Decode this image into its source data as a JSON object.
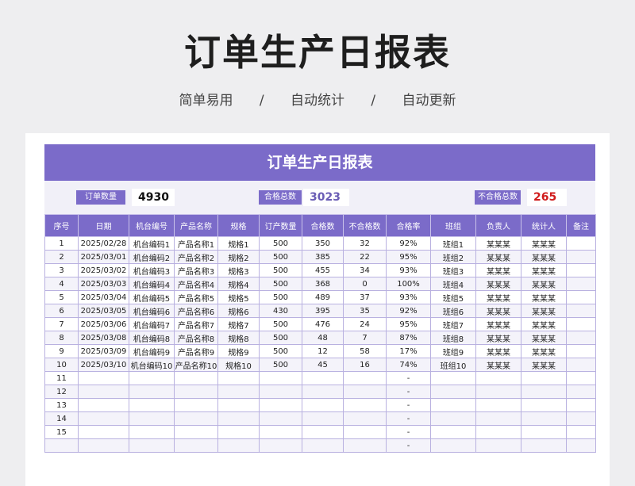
{
  "page": {
    "title": "订单生产日报表",
    "subtitle": [
      "简单易用",
      "自动统计",
      "自动更新"
    ],
    "subtitle_sep": "/"
  },
  "sheet": {
    "banner": "订单生产日报表",
    "summary": {
      "order_qty_label": "订单数量",
      "order_qty": "4930",
      "pass_total_label": "合格总数",
      "pass_total": "3023",
      "fail_total_label": "不合格总数",
      "fail_total": "265"
    },
    "colors": {
      "accent": "#7b6bc9",
      "pass_value": "#6a5db5",
      "fail_value": "#d01c1c"
    },
    "headers": [
      "序号",
      "日期",
      "机台编号",
      "产品名称",
      "规格",
      "订产数量",
      "合格数",
      "不合格数",
      "合格率",
      "班组",
      "负责人",
      "统计人",
      "备注"
    ],
    "rows": [
      [
        "1",
        "2025/02/28",
        "机台编码1",
        "产品名称1",
        "规格1",
        "500",
        "350",
        "32",
        "92%",
        "班组1",
        "某某某",
        "某某某",
        ""
      ],
      [
        "2",
        "2025/03/01",
        "机台编码2",
        "产品名称2",
        "规格2",
        "500",
        "385",
        "22",
        "95%",
        "班组2",
        "某某某",
        "某某某",
        ""
      ],
      [
        "3",
        "2025/03/02",
        "机台编码3",
        "产品名称3",
        "规格3",
        "500",
        "455",
        "34",
        "93%",
        "班组3",
        "某某某",
        "某某某",
        ""
      ],
      [
        "4",
        "2025/03/03",
        "机台编码4",
        "产品名称4",
        "规格4",
        "500",
        "368",
        "0",
        "100%",
        "班组4",
        "某某某",
        "某某某",
        ""
      ],
      [
        "5",
        "2025/03/04",
        "机台编码5",
        "产品名称5",
        "规格5",
        "500",
        "489",
        "37",
        "93%",
        "班组5",
        "某某某",
        "某某某",
        ""
      ],
      [
        "6",
        "2025/03/05",
        "机台编码6",
        "产品名称6",
        "规格6",
        "430",
        "395",
        "35",
        "92%",
        "班组6",
        "某某某",
        "某某某",
        ""
      ],
      [
        "7",
        "2025/03/06",
        "机台编码7",
        "产品名称7",
        "规格7",
        "500",
        "476",
        "24",
        "95%",
        "班组7",
        "某某某",
        "某某某",
        ""
      ],
      [
        "8",
        "2025/03/08",
        "机台编码8",
        "产品名称8",
        "规格8",
        "500",
        "48",
        "7",
        "87%",
        "班组8",
        "某某某",
        "某某某",
        ""
      ],
      [
        "9",
        "2025/03/09",
        "机台编码9",
        "产品名称9",
        "规格9",
        "500",
        "12",
        "58",
        "17%",
        "班组9",
        "某某某",
        "某某某",
        ""
      ],
      [
        "10",
        "2025/03/10",
        "机台编码10",
        "产品名称10",
        "规格10",
        "500",
        "45",
        "16",
        "74%",
        "班组10",
        "某某某",
        "某某某",
        ""
      ],
      [
        "11",
        "",
        "",
        "",
        "",
        "",
        "",
        "",
        "-",
        "",
        "",
        "",
        ""
      ],
      [
        "12",
        "",
        "",
        "",
        "",
        "",
        "",
        "",
        "-",
        "",
        "",
        "",
        ""
      ],
      [
        "13",
        "",
        "",
        "",
        "",
        "",
        "",
        "",
        "-",
        "",
        "",
        "",
        ""
      ],
      [
        "14",
        "",
        "",
        "",
        "",
        "",
        "",
        "",
        "-",
        "",
        "",
        "",
        ""
      ],
      [
        "15",
        "",
        "",
        "",
        "",
        "",
        "",
        "",
        "-",
        "",
        "",
        "",
        ""
      ],
      [
        "",
        "",
        "",
        "",
        "",
        "",
        "",
        "",
        "-",
        "",
        "",
        "",
        ""
      ]
    ]
  }
}
